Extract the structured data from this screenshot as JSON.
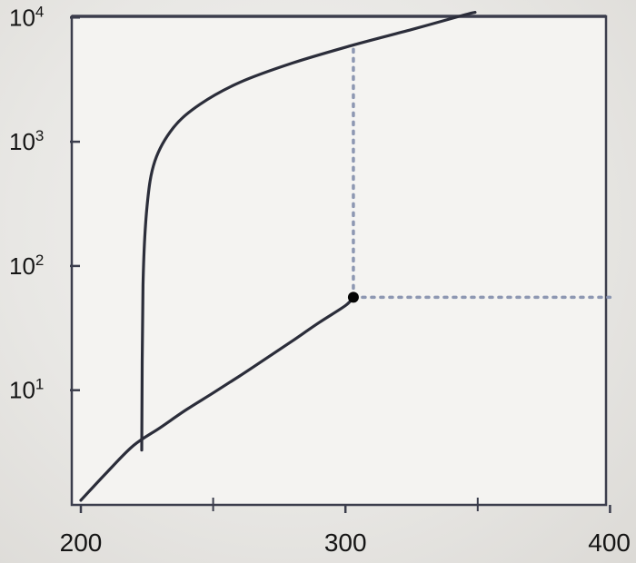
{
  "chart_data": {
    "type": "line",
    "title": "",
    "xlabel": "",
    "ylabel": "",
    "xlim": [
      200,
      400
    ],
    "ylim_log10": [
      0,
      4
    ],
    "y_scale": "log",
    "grid": false,
    "x_ticks": [
      {
        "value": 200,
        "label": "200"
      },
      {
        "value": 300,
        "label": "300"
      },
      {
        "value": 400,
        "label": "400"
      }
    ],
    "x_minor_ticks": [
      250,
      350
    ],
    "y_ticks": [
      {
        "value": 10,
        "base": "10",
        "exp": "1"
      },
      {
        "value": 100,
        "base": "10",
        "exp": "2"
      },
      {
        "value": 1000,
        "base": "10",
        "exp": "3"
      },
      {
        "value": 10000,
        "base": "10",
        "exp": "4"
      }
    ],
    "series": [
      {
        "style": "solid",
        "x": [
          200,
          210,
          220,
          230,
          240,
          250,
          260,
          270,
          280,
          290,
          300,
          303
        ],
        "y": [
          1.3,
          2.2,
          3.6,
          5.0,
          7.0,
          9.5,
          13,
          18,
          25,
          35,
          48,
          56
        ]
      },
      {
        "style": "solid",
        "x": [
          223,
          223.5,
          225,
          228,
          235,
          245,
          260,
          280,
          303,
          325,
          345,
          349
        ],
        "y": [
          3.3,
          70,
          300,
          700,
          1300,
          2000,
          3000,
          4300,
          6000,
          8000,
          10500,
          11000
        ]
      }
    ],
    "marker": {
      "x": 303,
      "y": 56
    },
    "reference_lines": [
      {
        "style": "dotted",
        "from": {
          "x": 303,
          "y": 56
        },
        "to": {
          "x": 303,
          "y": 6000
        }
      },
      {
        "style": "dotted",
        "from": {
          "x": 303,
          "y": 56
        },
        "to": {
          "x": 400,
          "y": 56
        }
      }
    ],
    "colors": {
      "line": "#2b2d3a",
      "dots": "#8d97b2",
      "frame": "#3b3d4c",
      "marker": "#050505"
    }
  }
}
